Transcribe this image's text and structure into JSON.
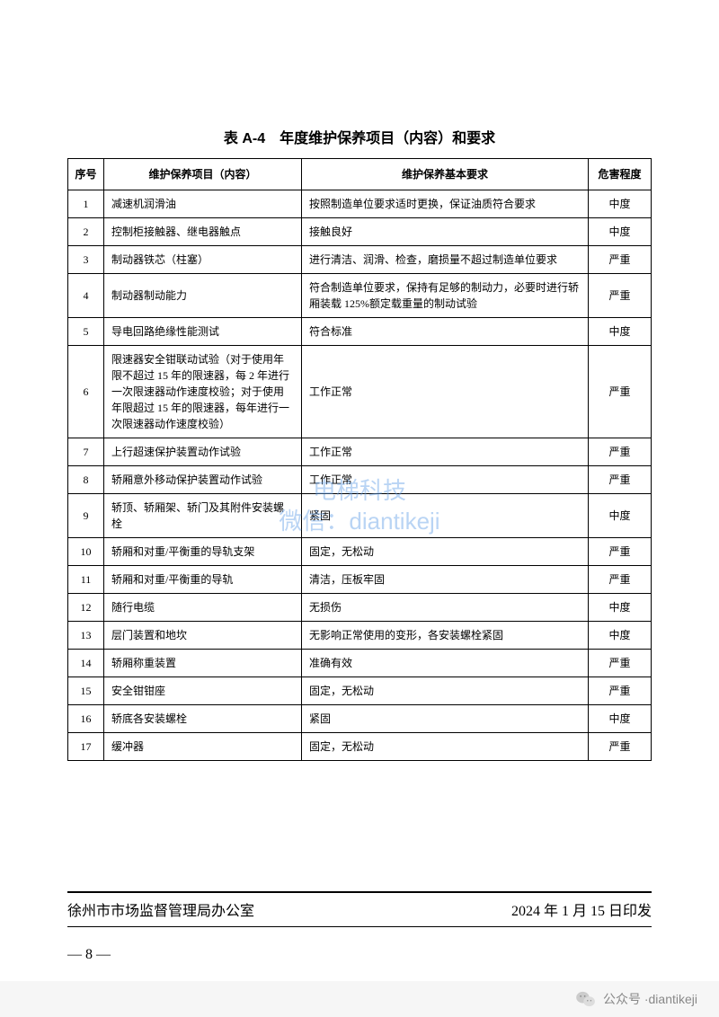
{
  "title": "表 A-4　年度维护保养项目（内容）和要求",
  "columns": [
    "序号",
    "维护保养项目（内容）",
    "维护保养基本要求",
    "危害程度"
  ],
  "rows": [
    {
      "seq": "1",
      "item": "减速机润滑油",
      "req": "按照制造单位要求适时更换，保证油质符合要求",
      "risk": "中度"
    },
    {
      "seq": "2",
      "item": "控制柜接触器、继电器触点",
      "req": "接触良好",
      "risk": "中度"
    },
    {
      "seq": "3",
      "item": "制动器铁芯（柱塞）",
      "req": "进行清洁、润滑、检查，磨损量不超过制造单位要求",
      "risk": "严重"
    },
    {
      "seq": "4",
      "item": "制动器制动能力",
      "req": "符合制造单位要求，保持有足够的制动力，必要时进行轿厢装载 125%额定载重量的制动试验",
      "risk": "严重"
    },
    {
      "seq": "5",
      "item": "导电回路绝缘性能测试",
      "req": "符合标准",
      "risk": "中度"
    },
    {
      "seq": "6",
      "item": "限速器安全钳联动试验（对于使用年限不超过 15 年的限速器，每 2 年进行一次限速器动作速度校验；对于使用年限超过 15 年的限速器，每年进行一次限速器动作速度校验）",
      "req": "工作正常",
      "risk": "严重"
    },
    {
      "seq": "7",
      "item": "上行超速保护装置动作试验",
      "req": "工作正常",
      "risk": "严重"
    },
    {
      "seq": "8",
      "item": "轿厢意外移动保护装置动作试验",
      "req": "工作正常",
      "risk": "严重"
    },
    {
      "seq": "9",
      "item": "轿顶、轿厢架、轿门及其附件安装螺栓",
      "req": "紧固",
      "risk": "中度"
    },
    {
      "seq": "10",
      "item": "轿厢和对重/平衡重的导轨支架",
      "req": "固定，无松动",
      "risk": "严重"
    },
    {
      "seq": "11",
      "item": "轿厢和对重/平衡重的导轨",
      "req": "清洁，压板牢固",
      "risk": "严重"
    },
    {
      "seq": "12",
      "item": "随行电缆",
      "req": "无损伤",
      "risk": "中度"
    },
    {
      "seq": "13",
      "item": "层门装置和地坎",
      "req": "无影响正常使用的变形，各安装螺栓紧固",
      "risk": "中度"
    },
    {
      "seq": "14",
      "item": "轿厢称重装置",
      "req": "准确有效",
      "risk": "严重"
    },
    {
      "seq": "15",
      "item": "安全钳钳座",
      "req": "固定，无松动",
      "risk": "严重"
    },
    {
      "seq": "16",
      "item": "轿底各安装螺栓",
      "req": "紧固",
      "risk": "中度"
    },
    {
      "seq": "17",
      "item": "缓冲器",
      "req": "固定，无松动",
      "risk": "严重"
    }
  ],
  "footer_left": "徐州市市场监督管理局办公室",
  "footer_right": "2024 年 1 月 15 日印发",
  "page_number": "— 8 —",
  "watermark_line1": "电梯科技",
  "watermark_line2": "微信：diantikeji",
  "bottom_account_prefix": "公众号 · ",
  "bottom_account": "diantikeji"
}
